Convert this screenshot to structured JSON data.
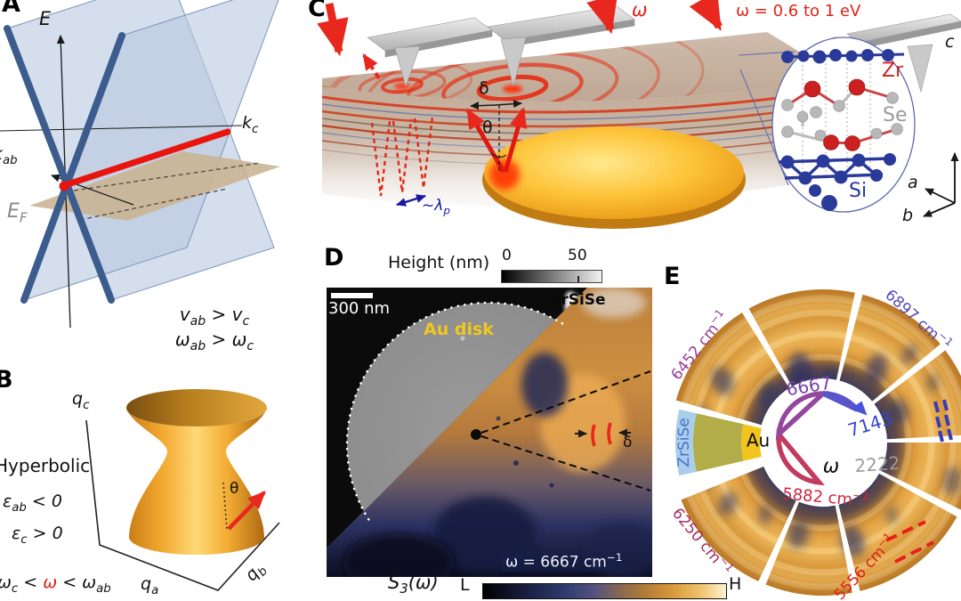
{
  "figure_type": "multi-panel scientific figure (hyperbolic plasmons in ZrSiSe)",
  "panels": {
    "A": {
      "label": "A",
      "energy_axis": "E",
      "kab_axis": "k_{ab}",
      "kc_axis": "k_{c}",
      "fermi_level": "E_{F}",
      "velocity_inequality": "v_{ab} > v_{c}",
      "frequency_inequality": "ω_{ab} > ω_{c}"
    },
    "B": {
      "label": "B",
      "qc_axis": "q_{c}",
      "qa_axis": "q_{a}",
      "qb_axis": "q_{b}",
      "regime": "Hyperbolic",
      "epsilon_ab": "ε_{ab} < 0",
      "epsilon_c": "ε_{c} > 0",
      "condition_left": "ω_{c} < ",
      "condition_omega": "ω",
      "condition_right": " < ω_{ab}",
      "angle": "θ"
    },
    "C": {
      "label": "C",
      "omega": "ω",
      "photon_energy_range": "ω = 0.6 to 1 eV",
      "delta": "δ",
      "theta": "θ",
      "plasmon_wavelength": "~λ_{p}",
      "atom_zr": "Zr",
      "atom_se": "Se",
      "atom_si": "Si",
      "axis_a": "a",
      "axis_b": "b",
      "axis_c": "c"
    },
    "D": {
      "label": "D",
      "height_scale_title": "Height (nm)",
      "height_min": "0",
      "height_max": "50",
      "scale_bar": "300 nm",
      "material": "ZrSiSe",
      "disk_label": "Au disk",
      "delta": "δ",
      "frequency": "ω = 6667 cm^{−1}",
      "signal": "S_{3}(ω)",
      "scale_low": "L",
      "scale_high": "H"
    },
    "E": {
      "label": "E",
      "omega": "ω",
      "material": "ZrSiSe",
      "disk_label": "Au",
      "frequencies": [
        {
          "id": "6452",
          "text": "6452 cm^{−1}",
          "color": "#963a98"
        },
        {
          "id": "6667",
          "text": "6667",
          "color": "#7a3fa6"
        },
        {
          "id": "6897",
          "text": "6897 cm^{−1}",
          "color": "#5747bd"
        },
        {
          "id": "7143",
          "text": "7143",
          "color": "#3347cf"
        },
        {
          "id": "2222",
          "text": "2222",
          "color": "#9a9a9a"
        },
        {
          "id": "5556",
          "text": "5556 cm^{−1}",
          "color": "#e01e18"
        },
        {
          "id": "5882",
          "text": "5882 cm^{−1}",
          "color": "#cf2440"
        },
        {
          "id": "6250",
          "text": "6250 cm^{−1}",
          "color": "#a82a60"
        }
      ]
    }
  },
  "colors": {
    "nodal_line_red": "#e8150f",
    "band_plane_blue": "#b9c9e0",
    "band_line_blue": "#3c5c8e",
    "fermi_plane_tan": "#c9b392",
    "hyperboloid_gold": "#f0a92e",
    "gold_disk": "#f0a81e",
    "nearfield_orange": "#d9943f",
    "nearfield_navy": "#2a3060",
    "au_wedge_yellow": "#f2c41e",
    "olive_wedge": "#b2ad48",
    "zrsise_wedge_blue": "#a9cdea",
    "red_accent": "#e02318",
    "lambda_blue": "#1a18a0"
  }
}
